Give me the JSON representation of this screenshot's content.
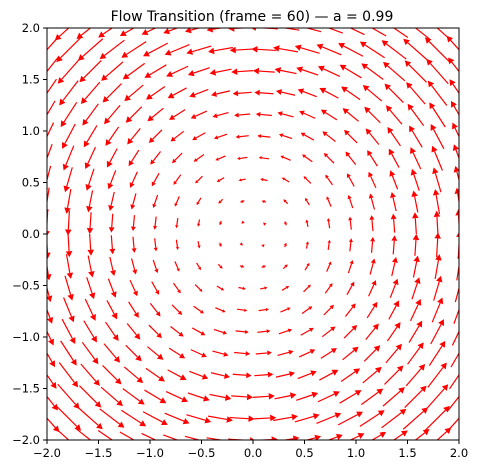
{
  "chart_data": {
    "type": "quiver",
    "title": "Flow Transition (frame = 60) — a = 0.99",
    "xlabel": "",
    "ylabel": "",
    "xlim": [
      -2.0,
      2.0
    ],
    "ylim": [
      -2.0,
      2.0
    ],
    "x_ticks": [
      -2.0,
      -1.5,
      -1.0,
      -0.5,
      0.0,
      0.5,
      1.0,
      1.5,
      2.0
    ],
    "x_tick_labels": [
      "−2.0",
      "−1.5",
      "−1.0",
      "−0.5",
      "0.0",
      "0.5",
      "1.0",
      "1.5",
      "2.0"
    ],
    "y_ticks": [
      -2.0,
      -1.5,
      -1.0,
      -0.5,
      0.0,
      0.5,
      1.0,
      1.5,
      2.0
    ],
    "y_tick_labels": [
      "−2.0",
      "−1.5",
      "−1.0",
      "−0.5",
      "0.0",
      "0.5",
      "1.0",
      "1.5",
      "2.0"
    ],
    "grid": false,
    "legend": "none",
    "arrow_color": "#ff0000",
    "field": {
      "description": "counter-clockwise rotational flow about the origin",
      "a": 0.99,
      "u": "-a*y",
      "v": "a*x",
      "grid_range": [
        -2.0,
        2.0
      ],
      "grid_points": 20
    }
  }
}
